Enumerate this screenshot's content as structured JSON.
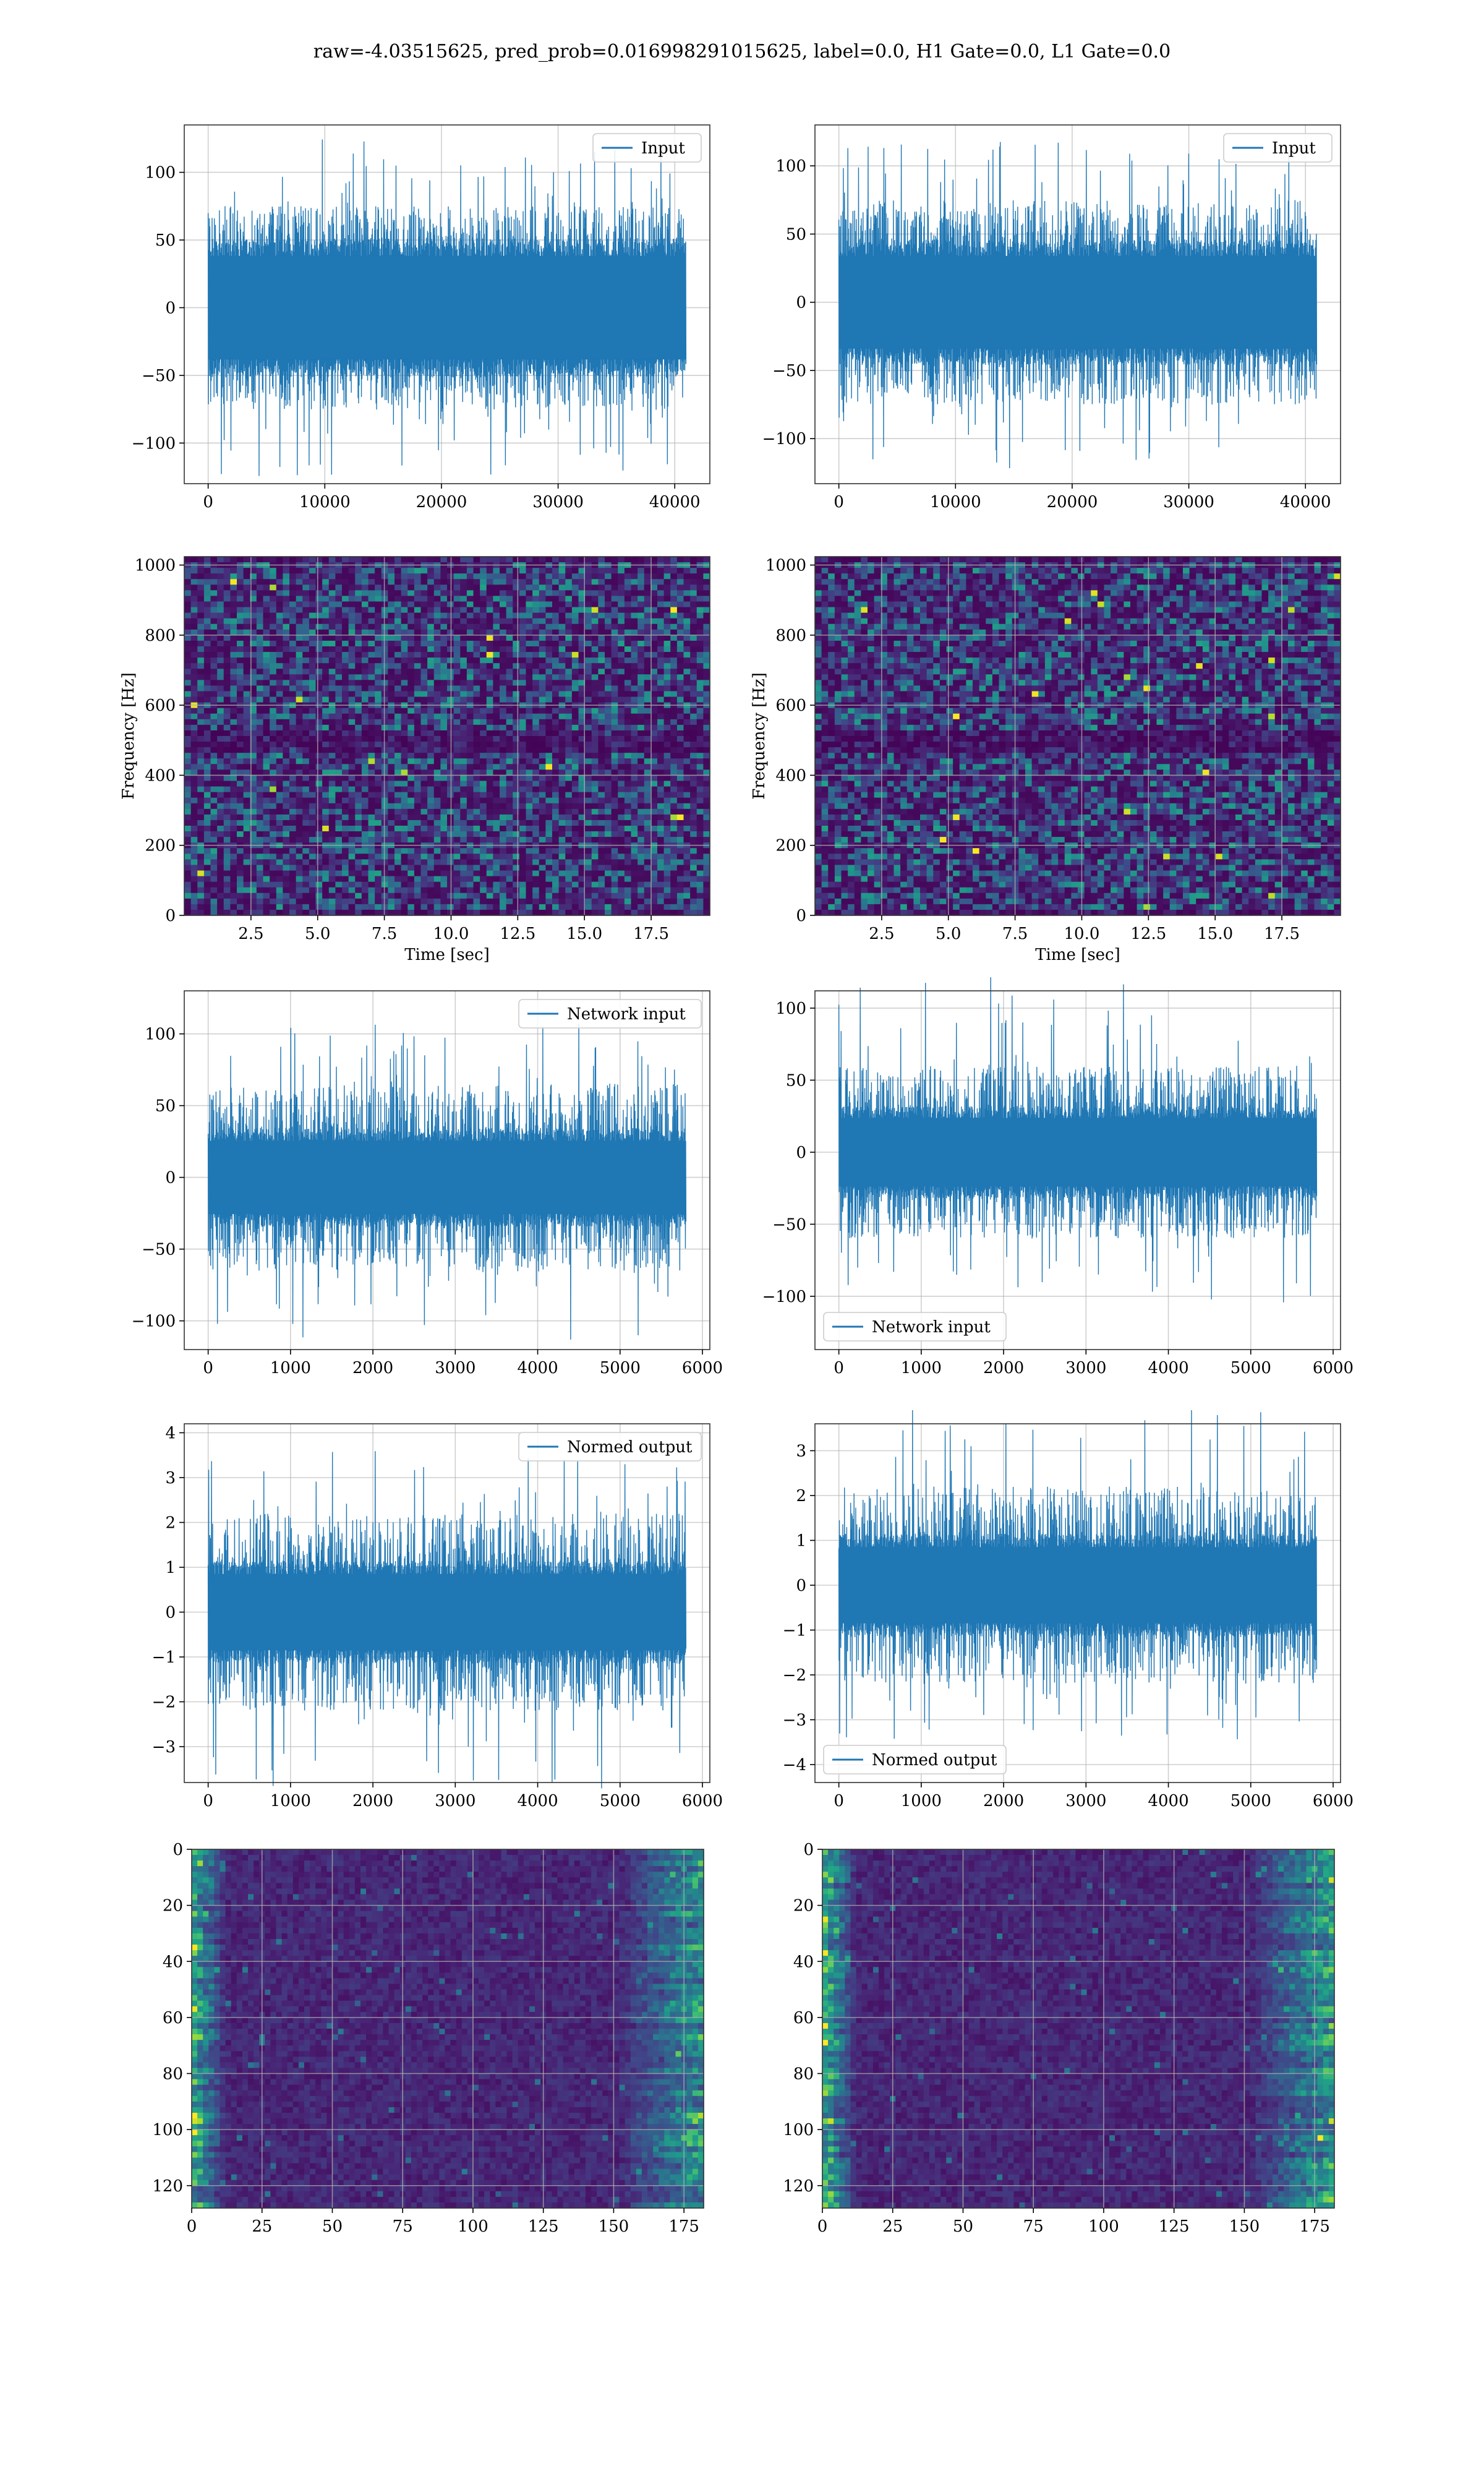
{
  "figure": {
    "suptitle": "raw=-4.03515625, pred_prob=0.016998291015625, label=0.0, H1 Gate=0.0, L1 Gate=0.0"
  },
  "colors": {
    "line": "#1f77b4",
    "grid": "#b0b0b0",
    "axes_edge": "#333333",
    "viridis_low": "#440154",
    "viridis_mid": "#21918c",
    "viridis_high": "#fde725"
  },
  "chart_data": [
    {
      "id": "input-h1",
      "type": "line",
      "legend": "Input",
      "legend_loc": "upper right",
      "x_range": [
        0,
        40960
      ],
      "xlim": [
        -2048,
        43008
      ],
      "ylim": [
        -130,
        135
      ],
      "xticks": [
        0,
        10000,
        20000,
        30000,
        40000
      ],
      "xtick_labels": [
        "0",
        "10000",
        "20000",
        "30000",
        "40000"
      ],
      "yticks": [
        -100,
        -50,
        0,
        50,
        100
      ],
      "ytick_labels": [
        "−100",
        "−50",
        "0",
        "50",
        "100"
      ],
      "envelope": {
        "core": 45,
        "typical_peak": 75,
        "max": 127,
        "min": -125
      },
      "grid": true,
      "xlabel": "",
      "ylabel": ""
    },
    {
      "id": "input-l1",
      "type": "line",
      "legend": "Input",
      "legend_loc": "upper right",
      "x_range": [
        0,
        40960
      ],
      "xlim": [
        -2048,
        43008
      ],
      "ylim": [
        -133,
        130
      ],
      "xticks": [
        0,
        10000,
        20000,
        30000,
        40000
      ],
      "xtick_labels": [
        "0",
        "10000",
        "20000",
        "30000",
        "40000"
      ],
      "yticks": [
        -100,
        -50,
        0,
        50,
        100
      ],
      "ytick_labels": [
        "−100",
        "−50",
        "0",
        "50",
        "100"
      ],
      "envelope": {
        "core": 40,
        "typical_peak": 75,
        "max": 125,
        "min": -118
      },
      "grid": true,
      "xlabel": "",
      "ylabel": ""
    },
    {
      "id": "spectrogram-h1",
      "type": "heatmap",
      "xlim": [
        0,
        19.7
      ],
      "ylim": [
        0,
        1024
      ],
      "xticks": [
        2.5,
        5.0,
        7.5,
        10.0,
        12.5,
        15.0,
        17.5
      ],
      "xtick_labels": [
        "2.5",
        "5.0",
        "7.5",
        "10.0",
        "12.5",
        "15.0",
        "17.5"
      ],
      "yticks": [
        0,
        200,
        400,
        600,
        800,
        1000
      ],
      "ytick_labels": [
        "0",
        "200",
        "400",
        "600",
        "800",
        "1000"
      ],
      "xlabel": "Time [sec]",
      "ylabel": "Frequency [Hz]",
      "colormap": "viridis",
      "grid": true
    },
    {
      "id": "spectrogram-l1",
      "type": "heatmap",
      "xlim": [
        0,
        19.7
      ],
      "ylim": [
        0,
        1024
      ],
      "xticks": [
        2.5,
        5.0,
        7.5,
        10.0,
        12.5,
        15.0,
        17.5
      ],
      "xtick_labels": [
        "2.5",
        "5.0",
        "7.5",
        "10.0",
        "12.5",
        "15.0",
        "17.5"
      ],
      "yticks": [
        0,
        200,
        400,
        600,
        800,
        1000
      ],
      "ytick_labels": [
        "0",
        "200",
        "400",
        "600",
        "800",
        "1000"
      ],
      "xlabel": "Time [sec]",
      "ylabel": "Frequency [Hz]",
      "colormap": "viridis",
      "grid": true
    },
    {
      "id": "network-input-h1",
      "type": "line",
      "legend": "Network input",
      "legend_loc": "upper right",
      "x_range": [
        0,
        5800
      ],
      "xlim": [
        -290,
        6090
      ],
      "ylim": [
        -120,
        130
      ],
      "xticks": [
        0,
        1000,
        2000,
        3000,
        4000,
        5000,
        6000
      ],
      "xtick_labels": [
        "0",
        "1000",
        "2000",
        "3000",
        "4000",
        "5000",
        "6000"
      ],
      "yticks": [
        -100,
        -50,
        0,
        50,
        100
      ],
      "ytick_labels": [
        "−100",
        "−50",
        "0",
        "50",
        "100"
      ],
      "envelope": {
        "core": 30,
        "typical_peak": 65,
        "max": 120,
        "min": -107
      },
      "grid": true,
      "xlabel": "",
      "ylabel": ""
    },
    {
      "id": "network-input-l1",
      "type": "line",
      "legend": "Network input",
      "legend_loc": "lower left",
      "x_range": [
        0,
        5800
      ],
      "xlim": [
        -290,
        6090
      ],
      "ylim": [
        -137,
        112
      ],
      "xticks": [
        0,
        1000,
        2000,
        3000,
        4000,
        5000,
        6000
      ],
      "xtick_labels": [
        "0",
        "1000",
        "2000",
        "3000",
        "4000",
        "5000",
        "6000"
      ],
      "yticks": [
        -100,
        -50,
        0,
        50,
        100
      ],
      "ytick_labels": [
        "−100",
        "−50",
        "0",
        "50",
        "100"
      ],
      "envelope": {
        "core": 28,
        "typical_peak": 60,
        "max": 105,
        "min": -125
      },
      "grid": true,
      "xlabel": "",
      "ylabel": ""
    },
    {
      "id": "normed-output-h1",
      "type": "line",
      "legend": "Normed output",
      "legend_loc": "upper right",
      "x_range": [
        0,
        5800
      ],
      "xlim": [
        -290,
        6090
      ],
      "ylim": [
        -3.8,
        4.2
      ],
      "xticks": [
        0,
        1000,
        2000,
        3000,
        4000,
        5000,
        6000
      ],
      "xtick_labels": [
        "0",
        "1000",
        "2000",
        "3000",
        "4000",
        "5000",
        "6000"
      ],
      "yticks": [
        -3,
        -2,
        -1,
        0,
        1,
        2,
        3,
        4
      ],
      "ytick_labels": [
        "−3",
        "−2",
        "−1",
        "0",
        "1",
        "2",
        "3",
        "4"
      ],
      "envelope": {
        "core": 1.0,
        "typical_peak": 2.2,
        "max": 3.95,
        "min": -3.6
      },
      "grid": true,
      "xlabel": "",
      "ylabel": ""
    },
    {
      "id": "normed-output-l1",
      "type": "line",
      "legend": "Normed output",
      "legend_loc": "lower left",
      "x_range": [
        0,
        5800
      ],
      "xlim": [
        -290,
        6090
      ],
      "ylim": [
        -4.4,
        3.6
      ],
      "xticks": [
        0,
        1000,
        2000,
        3000,
        4000,
        5000,
        6000
      ],
      "xtick_labels": [
        "0",
        "1000",
        "2000",
        "3000",
        "4000",
        "5000",
        "6000"
      ],
      "yticks": [
        -4,
        -3,
        -2,
        -1,
        0,
        1,
        2,
        3
      ],
      "ytick_labels": [
        "−4",
        "−3",
        "−2",
        "−1",
        "0",
        "1",
        "2",
        "3"
      ],
      "envelope": {
        "core": 1.0,
        "typical_peak": 2.2,
        "max": 3.45,
        "min": -4.05
      },
      "grid": true,
      "xlabel": "",
      "ylabel": ""
    },
    {
      "id": "feature-map-h1",
      "type": "heatmap",
      "xlim": [
        0,
        182
      ],
      "ylim": [
        128,
        0
      ],
      "xticks": [
        0,
        25,
        50,
        75,
        100,
        125,
        150,
        175
      ],
      "xtick_labels": [
        "0",
        "25",
        "50",
        "75",
        "100",
        "125",
        "150",
        "175"
      ],
      "yticks": [
        0,
        20,
        40,
        60,
        80,
        100,
        120
      ],
      "ytick_labels": [
        "0",
        "20",
        "40",
        "60",
        "80",
        "100",
        "120"
      ],
      "colormap": "viridis",
      "grid": true,
      "xlabel": "",
      "ylabel": ""
    },
    {
      "id": "feature-map-l1",
      "type": "heatmap",
      "xlim": [
        0,
        182
      ],
      "ylim": [
        128,
        0
      ],
      "xticks": [
        0,
        25,
        50,
        75,
        100,
        125,
        150,
        175
      ],
      "xtick_labels": [
        "0",
        "25",
        "50",
        "75",
        "100",
        "125",
        "150",
        "175"
      ],
      "yticks": [
        0,
        20,
        40,
        60,
        80,
        100,
        120
      ],
      "ytick_labels": [
        "0",
        "20",
        "40",
        "60",
        "80",
        "100",
        "120"
      ],
      "colormap": "viridis",
      "grid": true,
      "xlabel": "",
      "ylabel": ""
    }
  ]
}
